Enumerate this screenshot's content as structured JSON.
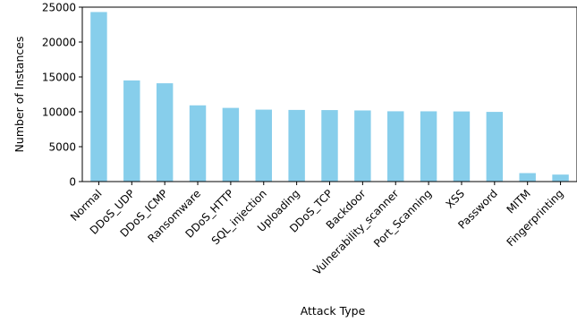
{
  "chart_data": {
    "type": "bar",
    "title": "",
    "xlabel": "Attack Type",
    "ylabel": "Number of Instances",
    "categories": [
      "Normal",
      "DDoS_UDP",
      "DDoS_ICMP",
      "Ransomware",
      "DDoS_HTTP",
      "SQL_injection",
      "Uploading",
      "DDoS_TCP",
      "Backdoor",
      "Vulnerability_scanner",
      "Port_Scanning",
      "XSS",
      "Password",
      "MITM",
      "Fingerprinting"
    ],
    "values": [
      24301,
      14498,
      14090,
      10925,
      10561,
      10311,
      10269,
      10247,
      10195,
      10076,
      10071,
      10052,
      9989,
      1214,
      1001
    ],
    "ylim": [
      0,
      25000
    ],
    "yticks": [
      0,
      5000,
      10000,
      15000,
      20000,
      25000
    ],
    "bar_color": "#87ceeb",
    "grid": false,
    "legend": false
  }
}
